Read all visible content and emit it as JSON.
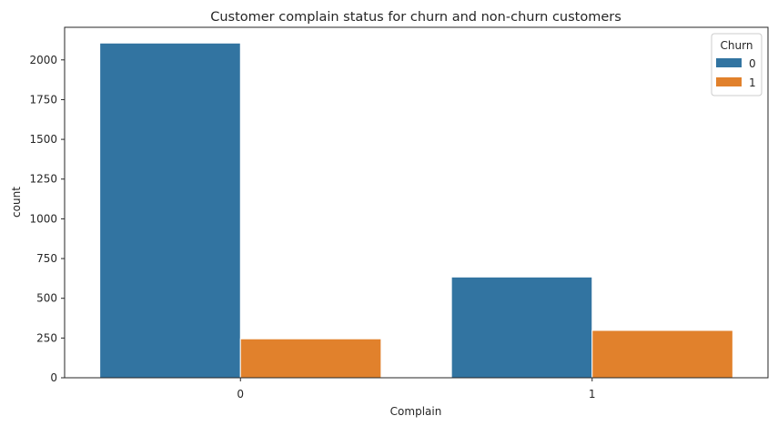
{
  "chart_data": {
    "type": "bar",
    "title": "Customer complain status for churn and non-churn customers",
    "xlabel": "Complain",
    "ylabel": "count",
    "categories": [
      "0",
      "1"
    ],
    "series": [
      {
        "name": "0",
        "values": [
          2106,
          634
        ],
        "color": "#3274a1"
      },
      {
        "name": "1",
        "values": [
          245,
          298
        ],
        "color": "#e1812c"
      }
    ],
    "ylim": [
      0,
      2205
    ],
    "yticks": [
      0,
      250,
      500,
      750,
      1000,
      1250,
      1500,
      1750,
      2000
    ],
    "legend": {
      "title": "Churn",
      "position": "top-right"
    },
    "grid": false
  }
}
